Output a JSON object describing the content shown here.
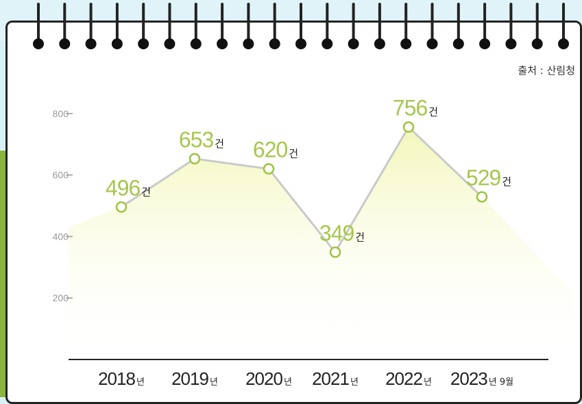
{
  "source_label": "출처 : 산림청",
  "chart_data": {
    "type": "line",
    "categories": [
      "2018",
      "2019",
      "2020",
      "2021",
      "2022",
      "2023"
    ],
    "category_suffixes": [
      "년",
      "년",
      "년",
      "년",
      "년",
      "년 9월"
    ],
    "values": [
      496,
      653,
      620,
      349,
      756,
      529
    ],
    "value_suffix": "건",
    "yticks": [
      200,
      400,
      600,
      800
    ],
    "ylim": [
      0,
      850
    ],
    "colors": {
      "line": "#c9c9c9",
      "marker": "#9bc43a",
      "value_label": "#a5c74a",
      "area_top": "#f2f6b5",
      "axis": "#222222",
      "tick": "#999999"
    }
  }
}
